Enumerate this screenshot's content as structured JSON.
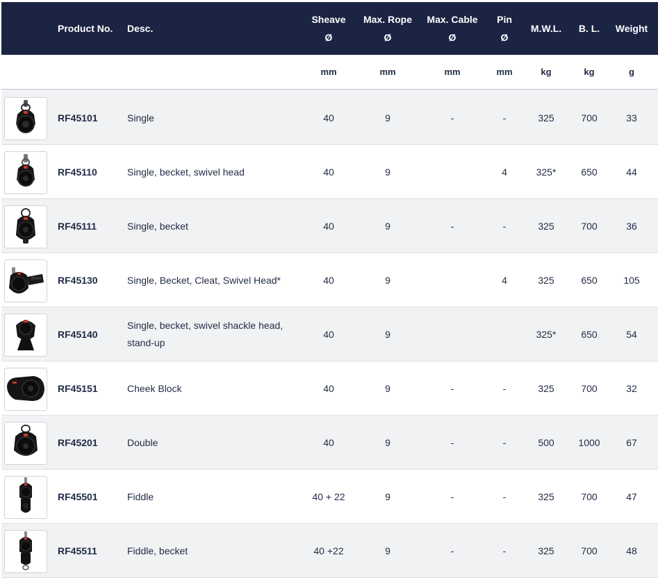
{
  "header": {
    "product_no": "Product No.",
    "desc": "Desc.",
    "sheave": [
      "Sheave",
      "Ø"
    ],
    "max_rope": [
      "Max. Rope",
      "Ø"
    ],
    "max_cable": [
      "Max. Cable",
      "Ø"
    ],
    "pin": [
      "Pin",
      "Ø"
    ],
    "mwl": "M.W.L.",
    "bl": "B. L.",
    "weight": "Weight"
  },
  "units": {
    "sheave": "mm",
    "max_rope": "mm",
    "max_cable": "mm",
    "pin": "mm",
    "mwl": "kg",
    "bl": "kg",
    "weight": "g"
  },
  "colors": {
    "header_bg": "#1b2443",
    "row_alt": "#f1f2f4",
    "text": "#1f2a44"
  },
  "rows": [
    {
      "pno": "RF45101",
      "desc": [
        "Single"
      ],
      "sheave": "40",
      "rope": "9",
      "cable": "-",
      "pin": "-",
      "mwl": "325",
      "bl": "700",
      "weight": "33",
      "icon": "single-block-icon"
    },
    {
      "pno": "RF45110",
      "desc": [
        "Single, becket, swivel head"
      ],
      "sheave": "40",
      "rope": "9",
      "cable": "",
      "pin": "4",
      "mwl": "325*",
      "bl": "650",
      "weight": "44",
      "icon": "swivel-block-icon"
    },
    {
      "pno": "RF45111",
      "desc": [
        "Single, becket"
      ],
      "sheave": "40",
      "rope": "9",
      "cable": "-",
      "pin": "-",
      "mwl": "325",
      "bl": "700",
      "weight": "36",
      "icon": "becket-block-icon"
    },
    {
      "pno": "RF45130",
      "desc": [
        "Single, Becket, Cleat, Swivel Head*"
      ],
      "sheave": "40",
      "rope": "9",
      "cable": "",
      "pin": "4",
      "mwl": "325",
      "bl": "650",
      "weight": "105",
      "icon": "cleat-block-icon"
    },
    {
      "pno": "RF45140",
      "desc": [
        "Single, becket, swivel shackle head,",
        "stand-up"
      ],
      "sheave": "40",
      "rope": "9",
      "cable": "",
      "pin": "",
      "mwl": "325*",
      "bl": "650",
      "weight": "54",
      "icon": "standup-block-icon"
    },
    {
      "pno": "RF45151",
      "desc": [
        "Cheek Block"
      ],
      "sheave": "40",
      "rope": "9",
      "cable": "-",
      "pin": "-",
      "mwl": "325",
      "bl": "700",
      "weight": "32",
      "icon": "cheek-block-icon"
    },
    {
      "pno": "RF45201",
      "desc": [
        "Double"
      ],
      "sheave": "40",
      "rope": "9",
      "cable": "-",
      "pin": "-",
      "mwl": "500",
      "bl": "1000",
      "weight": "67",
      "icon": "double-block-icon"
    },
    {
      "pno": "RF45501",
      "desc": [
        "Fiddle"
      ],
      "sheave": "40 + 22",
      "rope": "9",
      "cable": "-",
      "pin": "-",
      "mwl": "325",
      "bl": "700",
      "weight": "47",
      "icon": "fiddle-block-icon"
    },
    {
      "pno": "RF45511",
      "desc": [
        "Fiddle, becket"
      ],
      "sheave": "40 +22",
      "rope": "9",
      "cable": "-",
      "pin": "-",
      "mwl": "325",
      "bl": "700",
      "weight": "48",
      "icon": "fiddle-becket-block-icon"
    }
  ]
}
